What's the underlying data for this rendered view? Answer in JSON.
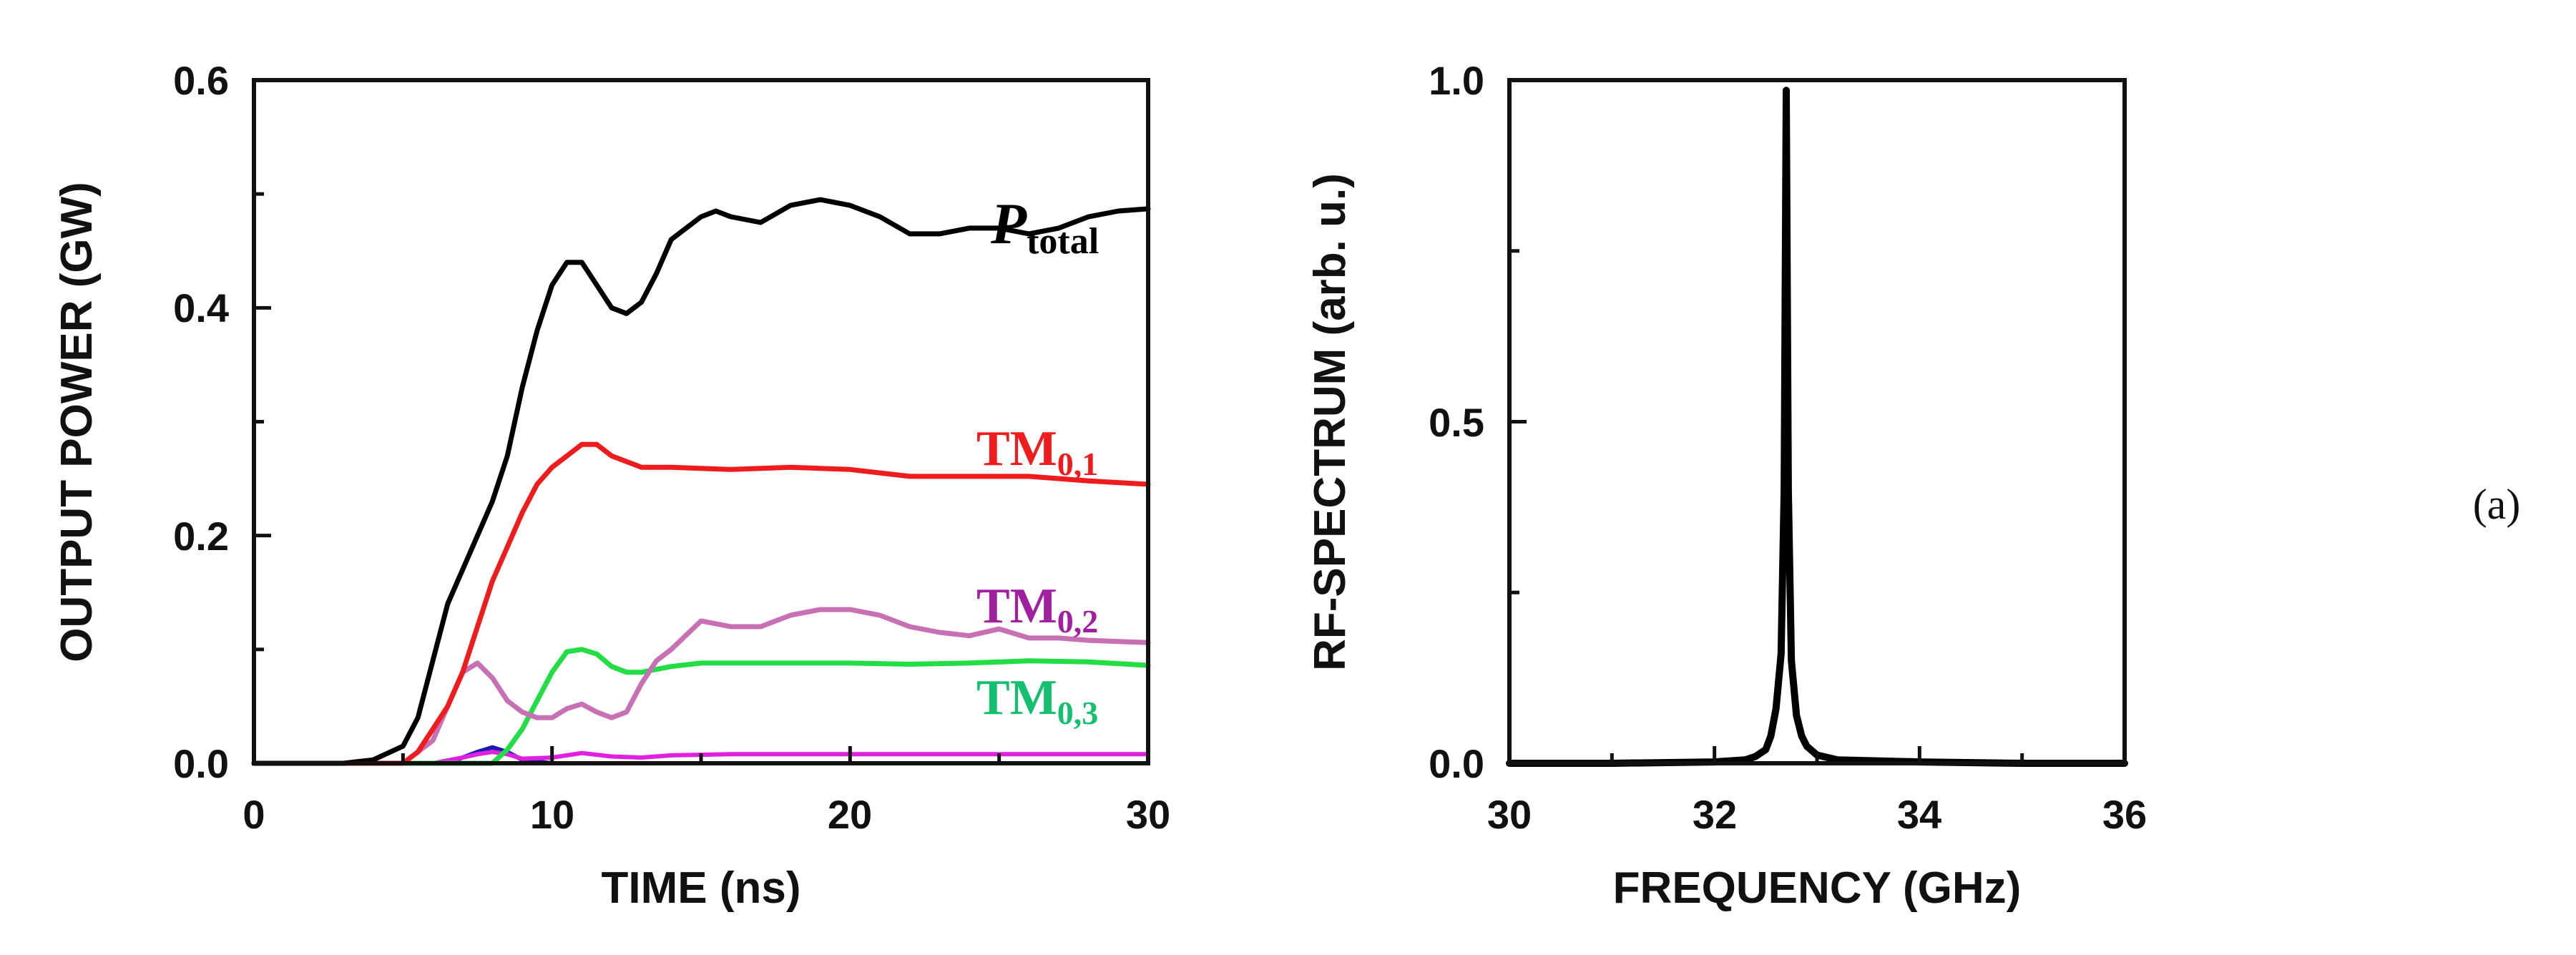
{
  "figure": {
    "panel_label": "(a)"
  },
  "chart_data": [
    {
      "type": "line",
      "xlabel": "TIME (ns)",
      "ylabel": "OUTPUT POWER (GW)",
      "xlim": [
        0,
        30
      ],
      "ylim": [
        0,
        0.6
      ],
      "xticks": [
        0,
        10,
        20,
        30
      ],
      "yticks": [
        0.0,
        0.2,
        0.4,
        0.6
      ],
      "xtick_labels": [
        "0",
        "10",
        "20",
        "30"
      ],
      "ytick_labels": [
        "0.0",
        "0.2",
        "0.4",
        "0.6"
      ],
      "series": [
        {
          "name": "P_total",
          "label_main": "P",
          "label_sub": "total",
          "color": "#000000",
          "x": [
            0,
            3,
            4,
            5,
            5.5,
            6,
            6.5,
            7,
            7.5,
            8,
            8.5,
            9,
            9.5,
            10,
            10.5,
            11,
            11.5,
            12,
            12.5,
            13,
            13.5,
            14,
            15,
            15.5,
            16,
            17,
            18,
            19,
            20,
            21,
            22,
            23,
            24,
            25,
            26,
            27,
            28,
            29,
            30
          ],
          "y": [
            0,
            0,
            0.003,
            0.015,
            0.04,
            0.09,
            0.14,
            0.17,
            0.2,
            0.23,
            0.27,
            0.33,
            0.38,
            0.42,
            0.44,
            0.44,
            0.42,
            0.4,
            0.395,
            0.405,
            0.43,
            0.46,
            0.48,
            0.485,
            0.48,
            0.475,
            0.49,
            0.495,
            0.49,
            0.48,
            0.465,
            0.465,
            0.47,
            0.47,
            0.465,
            0.47,
            0.48,
            0.485,
            0.487
          ]
        },
        {
          "name": "TM0,1",
          "label_main": "TM",
          "label_sub": "0,1",
          "color": "#ee1c1c",
          "x": [
            0,
            5,
            5.5,
            6,
            6.5,
            7,
            7.5,
            8,
            8.5,
            9,
            9.5,
            10,
            10.5,
            11,
            11.5,
            12,
            13,
            14,
            16,
            18,
            20,
            22,
            24,
            26,
            28,
            30
          ],
          "y": [
            0,
            0,
            0.01,
            0.03,
            0.05,
            0.08,
            0.12,
            0.16,
            0.19,
            0.22,
            0.245,
            0.26,
            0.27,
            0.28,
            0.28,
            0.27,
            0.26,
            0.26,
            0.258,
            0.26,
            0.258,
            0.252,
            0.252,
            0.252,
            0.248,
            0.245
          ]
        },
        {
          "name": "TM0,2",
          "label_main": "TM",
          "label_sub": "0,2",
          "color": "#c870b4",
          "label_color": "#a020a0",
          "x": [
            0,
            5,
            6,
            6.5,
            7,
            7.5,
            8,
            8.5,
            9,
            9.5,
            10,
            10.5,
            11,
            11.5,
            12,
            12.5,
            13,
            13.5,
            14,
            15,
            16,
            17,
            18,
            19,
            20,
            21,
            22,
            23,
            24,
            25,
            26,
            27,
            28,
            29,
            30
          ],
          "y": [
            0,
            0,
            0.02,
            0.05,
            0.08,
            0.088,
            0.075,
            0.055,
            0.045,
            0.04,
            0.04,
            0.048,
            0.052,
            0.045,
            0.04,
            0.045,
            0.07,
            0.09,
            0.1,
            0.125,
            0.12,
            0.12,
            0.13,
            0.135,
            0.135,
            0.13,
            0.12,
            0.115,
            0.112,
            0.118,
            0.11,
            0.11,
            0.108,
            0.107,
            0.106
          ]
        },
        {
          "name": "TM0,3",
          "label_main": "TM",
          "label_sub": "0,3",
          "color": "#22dd44",
          "label_color": "#14c070",
          "x": [
            0,
            8,
            8.5,
            9,
            9.5,
            10,
            10.5,
            11,
            11.5,
            12,
            12.5,
            13,
            14,
            15,
            16,
            18,
            20,
            22,
            24,
            26,
            28,
            30
          ],
          "y": [
            0,
            0,
            0.012,
            0.03,
            0.055,
            0.08,
            0.098,
            0.1,
            0.096,
            0.085,
            0.08,
            0.08,
            0.085,
            0.088,
            0.088,
            0.088,
            0.088,
            0.087,
            0.088,
            0.09,
            0.089,
            0.086
          ]
        },
        {
          "name": "magenta (minor mode)",
          "color": "#e020e0",
          "x": [
            0,
            6,
            7,
            7.5,
            8,
            8.5,
            9,
            10,
            11,
            12,
            13,
            14,
            16,
            20,
            25,
            30
          ],
          "y": [
            0,
            0,
            0.005,
            0.008,
            0.01,
            0.008,
            0.004,
            0.005,
            0.009,
            0.006,
            0.005,
            0.007,
            0.008,
            0.008,
            0.008,
            0.008
          ]
        },
        {
          "name": "blue (minor mode)",
          "color": "#1a1ab0",
          "x": [
            0,
            6.5,
            7.5,
            8,
            8.5,
            9,
            10,
            30
          ],
          "y": [
            0,
            0,
            0.01,
            0.014,
            0.01,
            0.003,
            0,
            0
          ]
        }
      ]
    },
    {
      "type": "line",
      "xlabel": "FREQUENCY (GHz)",
      "ylabel": "RF-SPECTRUM (arb. u.)",
      "xlim": [
        30,
        36
      ],
      "ylim": [
        0,
        1.0
      ],
      "xticks": [
        30,
        32,
        34,
        36
      ],
      "yticks": [
        0.0,
        0.5,
        1.0
      ],
      "xtick_labels": [
        "30",
        "32",
        "34",
        "36"
      ],
      "ytick_labels": [
        "0.0",
        "0.5",
        "1.0"
      ],
      "series": [
        {
          "name": "spectrum",
          "color": "#000000",
          "x": [
            30,
            31,
            32,
            32.3,
            32.4,
            32.5,
            32.55,
            32.6,
            32.65,
            32.68,
            32.7,
            32.72,
            32.75,
            32.8,
            32.85,
            32.9,
            33.0,
            33.2,
            34,
            35,
            36
          ],
          "y": [
            0,
            0,
            0.002,
            0.005,
            0.01,
            0.02,
            0.04,
            0.08,
            0.16,
            0.4,
            0.985,
            0.4,
            0.15,
            0.07,
            0.04,
            0.025,
            0.012,
            0.005,
            0.002,
            0,
            0
          ]
        }
      ]
    }
  ]
}
